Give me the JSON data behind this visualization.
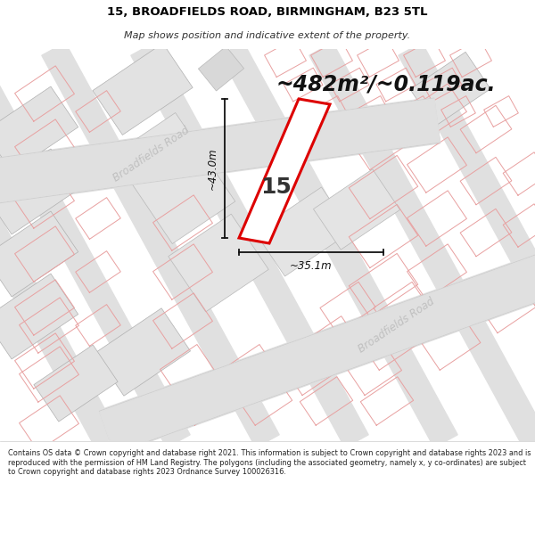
{
  "title_line1": "15, BROADFIELDS ROAD, BIRMINGHAM, B23 5TL",
  "title_line2": "Map shows position and indicative extent of the property.",
  "area_text": "~482m²/~0.119ac.",
  "label_number": "15",
  "dim_width": "~35.1m",
  "dim_height": "~43.0m",
  "road_label1": "Broadfields Road",
  "road_label2": "Broadfields Road",
  "footer_text": "Contains OS data © Crown copyright and database right 2021. This information is subject to Crown copyright and database rights 2023 and is reproduced with the permission of HM Land Registry. The polygons (including the associated geometry, namely x, y co-ordinates) are subject to Crown copyright and database rights 2023 Ordnance Survey 100026316.",
  "map_bg": "#f8f8f8",
  "road_fill": "#e0e0e0",
  "road_dark": "#d0d0d0",
  "property_fill": "#ffffff",
  "property_edge": "#dd0000",
  "plot_line_color": "#e8a0a0",
  "plot_fill": "#efefef",
  "dim_line_color": "#111111",
  "road_text_color": "#c0c0c0",
  "area_text_color": "#111111",
  "num_text_color": "#333333"
}
